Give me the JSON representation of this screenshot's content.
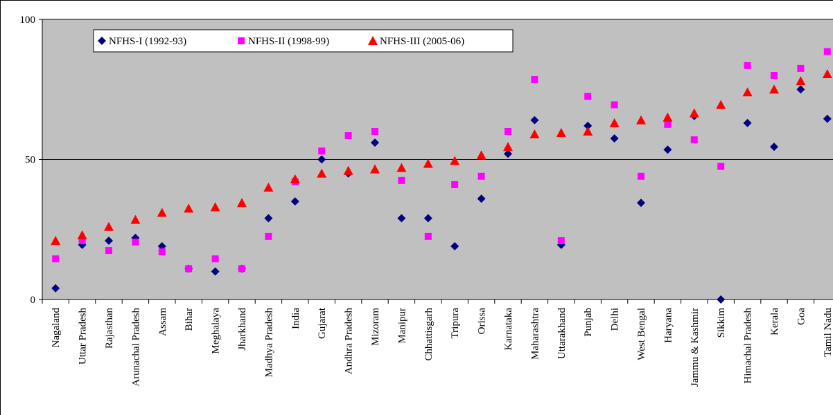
{
  "chart_data": {
    "type": "scatter",
    "categories": [
      "Nagaland",
      "Uttar Pradesh",
      "Rajasthan",
      "Arunachal Pradesh",
      "Assam",
      "Bihar",
      "Meghalaya",
      "Jharkhand",
      "Madhya Pradesh",
      "India",
      "Gujarat",
      "Andhra Pradesh",
      "Mizoram",
      "Manipur",
      "Chhattisgarh",
      "Tripura",
      "Orissa",
      "Karnataka",
      "Maharashtra",
      "Uttarakhand",
      "Punjab",
      "Delhi",
      "West Bengal",
      "Haryana",
      "Jammu & Kashmir",
      "Sikkim",
      "Himachal Pradesh",
      "Kerala",
      "Goa",
      "Tamil Nadu"
    ],
    "series": [
      {
        "name": "NFHS-I (1992-93)",
        "color": "#000080",
        "marker": "diamond",
        "values": [
          4,
          19.5,
          21,
          22,
          19,
          11,
          10,
          11,
          29,
          35,
          50,
          45,
          56,
          29,
          29,
          19,
          36,
          52,
          64,
          19.5,
          62,
          57.5,
          34.5,
          53.5,
          65.5,
          0,
          63,
          54.5,
          75,
          64.5
        ]
      },
      {
        "name": "NFHS-II (1998-99)",
        "color": "#ff00ff",
        "marker": "square",
        "values": [
          14.5,
          21,
          17.5,
          20.5,
          17,
          11,
          14.5,
          11,
          22.5,
          42,
          53,
          58.5,
          60,
          42.5,
          22.5,
          41,
          44,
          60,
          78.5,
          21,
          72.5,
          69.5,
          44,
          62.5,
          57,
          47.5,
          83.5,
          80,
          82.5,
          88.5
        ]
      },
      {
        "name": "NFHS-III (2005-06)",
        "color": "#ff0000",
        "marker": "triangle",
        "values": [
          21,
          23,
          26,
          28.5,
          31,
          32.5,
          33,
          34.5,
          40,
          43,
          45,
          46,
          46.5,
          47,
          48.5,
          49.5,
          51.5,
          54.5,
          59,
          59.5,
          60,
          63,
          64,
          65,
          66.5,
          69.5,
          74,
          75,
          78,
          80.5
        ]
      }
    ],
    "ylim": [
      0,
      100
    ],
    "yticks": [
      0,
      50,
      100
    ],
    "grid": true
  }
}
